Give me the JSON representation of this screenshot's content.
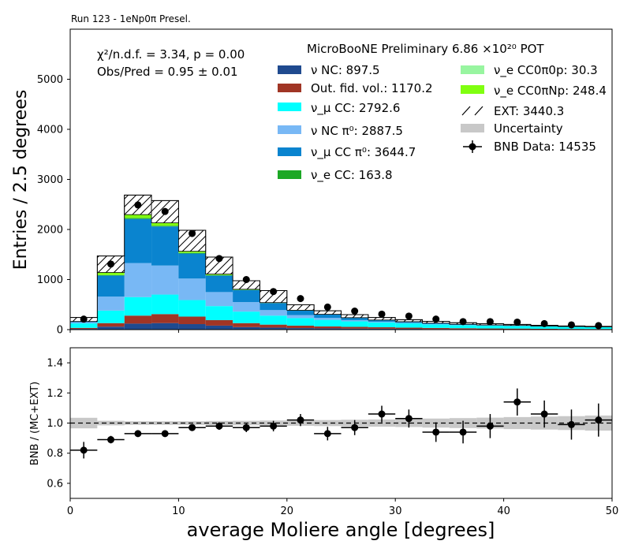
{
  "run_label": "Run 123 - 1eNp0π Presel.",
  "experiment_label": "MicroBooNE Preliminary 6.86 ×10²⁰ POT",
  "stats": {
    "chi2": "χ²/n.d.f. = 3.34, p = 0.00",
    "obs_pred": "Obs/Pred = 0.95 ± 0.01"
  },
  "colors": {
    "nu_nc": "#1f4a8f",
    "out_fid": "#a03525",
    "numu_cc": "#00ffff",
    "nu_nc_pi0": "#78b8f5",
    "numu_cc_pi0": "#0a84cf",
    "nue_cc": "#1ca825",
    "nue_cc0pi0p": "#98f5a0",
    "nue_cc0piNp": "#80ff10",
    "ext": "#ffffff",
    "uncertainty": "#c8c8c8",
    "data": "#000000"
  },
  "legend": {
    "nu_nc": "ν NC: 897.5",
    "out_fid": "Out. fid. vol.: 1170.2",
    "numu_cc": "ν_μ CC: 2792.6",
    "nu_nc_pi0": "ν NC π⁰: 2887.5",
    "numu_cc_pi0": "ν_μ CC π⁰: 3644.7",
    "nue_cc": "ν_e CC: 163.8",
    "nue_cc0pi0p": "ν_e CC0π0p: 30.3",
    "nue_cc0piNp": "ν_e CC0πNp: 248.4",
    "ext": "EXT: 3440.3",
    "uncertainty": "Uncertainty",
    "data": "BNB Data: 14535"
  },
  "chart_data": [
    {
      "type": "bar",
      "stacked": true,
      "ylabel": "Entries / 2.5 degrees",
      "xlim": [
        0,
        50
      ],
      "ylim": [
        0,
        6000
      ],
      "yticks": [
        "0",
        "1000",
        "2000",
        "3000",
        "4000",
        "5000"
      ],
      "bin_edges": [
        0,
        2.5,
        5,
        7.5,
        10,
        12.5,
        15,
        17.5,
        20,
        22.5,
        25,
        27.5,
        30,
        32.5,
        35,
        37.5,
        40,
        42.5,
        45,
        47.5,
        50
      ],
      "series": [
        {
          "key": "nu_nc",
          "values": [
            15,
            60,
            120,
            130,
            110,
            80,
            50,
            40,
            30,
            25,
            20,
            18,
            15,
            12,
            10,
            8,
            8,
            6,
            5,
            5
          ]
        },
        {
          "key": "out_fid",
          "values": [
            20,
            70,
            160,
            180,
            150,
            110,
            80,
            60,
            50,
            40,
            35,
            30,
            25,
            22,
            18,
            15,
            13,
            11,
            9,
            8
          ]
        },
        {
          "key": "numu_cc",
          "values": [
            90,
            250,
            370,
            390,
            330,
            280,
            230,
            180,
            150,
            130,
            110,
            95,
            85,
            70,
            60,
            55,
            50,
            45,
            40,
            35
          ]
        },
        {
          "key": "nu_nc_pi0",
          "values": [
            20,
            280,
            680,
            580,
            430,
            280,
            190,
            110,
            60,
            40,
            25,
            15,
            10,
            8,
            6,
            5,
            4,
            3,
            2,
            2
          ]
        },
        {
          "key": "numu_cc_pi0",
          "values": [
            15,
            420,
            880,
            780,
            500,
            330,
            240,
            140,
            90,
            65,
            45,
            30,
            20,
            15,
            10,
            8,
            6,
            5,
            4,
            3
          ]
        },
        {
          "key": "nue_cc",
          "values": [
            2,
            10,
            20,
            15,
            12,
            8,
            5,
            4,
            3,
            3,
            2,
            2,
            2,
            1,
            1,
            1,
            1,
            1,
            1,
            1
          ]
        },
        {
          "key": "nue_cc0pi0p",
          "values": [
            0,
            1,
            2,
            2,
            2,
            1,
            1,
            1,
            1,
            1,
            1,
            1,
            1,
            1,
            1,
            1,
            1,
            1,
            1,
            1
          ]
        },
        {
          "key": "nue_cc0piNp",
          "values": [
            1,
            50,
            65,
            55,
            30,
            20,
            10,
            5,
            3,
            2,
            1,
            1,
            1,
            1,
            1,
            1,
            1,
            0,
            0,
            0
          ]
        },
        {
          "key": "ext",
          "values": [
            80,
            330,
            390,
            445,
            420,
            340,
            170,
            240,
            110,
            70,
            60,
            50,
            40,
            35,
            30,
            25,
            20,
            15,
            10,
            10
          ]
        }
      ],
      "data_points": {
        "x": [
          1.25,
          3.75,
          6.25,
          8.75,
          11.25,
          13.75,
          16.25,
          18.75,
          21.25,
          23.75,
          26.25,
          28.75,
          31.25,
          33.75,
          36.25,
          38.75,
          41.25,
          43.75,
          46.25,
          48.75
        ],
        "y": [
          210,
          1310,
          2490,
          2360,
          1920,
          1420,
          1000,
          760,
          620,
          450,
          370,
          310,
          270,
          210,
          160,
          160,
          150,
          120,
          95,
          80
        ]
      }
    },
    {
      "type": "scatter",
      "ylabel": "BNB / (MC+EXT)",
      "xlabel": "average Moliere angle [degrees]",
      "xlim": [
        0,
        50
      ],
      "ylim": [
        0.5,
        1.5
      ],
      "xticks": [
        "0",
        "10",
        "20",
        "30",
        "40",
        "50"
      ],
      "yticks": [
        "0.6",
        "0.8",
        "1.0",
        "1.2",
        "1.4"
      ],
      "bin_edges": [
        0,
        2.5,
        5,
        7.5,
        10,
        12.5,
        15,
        17.5,
        20,
        22.5,
        25,
        27.5,
        30,
        32.5,
        35,
        37.5,
        40,
        42.5,
        45,
        47.5,
        50
      ],
      "x": [
        1.25,
        3.75,
        6.25,
        8.75,
        11.25,
        13.75,
        16.25,
        18.75,
        21.25,
        23.75,
        26.25,
        28.75,
        31.25,
        33.75,
        36.25,
        38.75,
        41.25,
        43.75,
        46.25,
        48.75
      ],
      "y": [
        0.82,
        0.89,
        0.93,
        0.93,
        0.97,
        0.98,
        0.97,
        0.98,
        1.02,
        0.93,
        0.97,
        1.06,
        1.03,
        0.94,
        0.94,
        0.98,
        1.14,
        1.06,
        0.99,
        1.02
      ],
      "yerr": [
        0.055,
        0.025,
        0.02,
        0.02,
        0.02,
        0.025,
        0.03,
        0.035,
        0.04,
        0.045,
        0.05,
        0.055,
        0.06,
        0.065,
        0.075,
        0.08,
        0.09,
        0.09,
        0.1,
        0.11
      ],
      "unc": [
        0.035,
        0.015,
        0.012,
        0.012,
        0.012,
        0.014,
        0.015,
        0.017,
        0.018,
        0.02,
        0.022,
        0.024,
        0.026,
        0.03,
        0.033,
        0.036,
        0.04,
        0.043,
        0.046,
        0.05
      ],
      "reference": 1.0
    }
  ]
}
